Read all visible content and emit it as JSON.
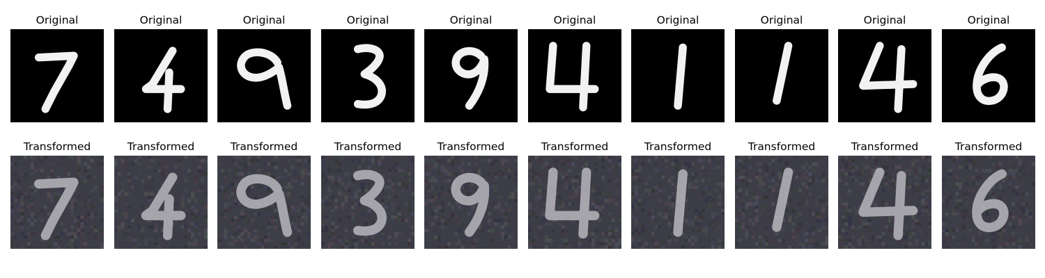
{
  "rows": [
    {
      "kind": "original",
      "panels": [
        {
          "title": "Original",
          "digit": "7"
        },
        {
          "title": "Original",
          "digit": "4"
        },
        {
          "title": "Original",
          "digit": "9"
        },
        {
          "title": "Original",
          "digit": "3"
        },
        {
          "title": "Original",
          "digit": "9"
        },
        {
          "title": "Original",
          "digit": "4"
        },
        {
          "title": "Original",
          "digit": "1"
        },
        {
          "title": "Original",
          "digit": "1"
        },
        {
          "title": "Original",
          "digit": "4"
        },
        {
          "title": "Original",
          "digit": "6"
        }
      ]
    },
    {
      "kind": "transformed",
      "panels": [
        {
          "title": "Transformed",
          "digit": "7"
        },
        {
          "title": "Transformed",
          "digit": "4"
        },
        {
          "title": "Transformed",
          "digit": "9"
        },
        {
          "title": "Transformed",
          "digit": "3"
        },
        {
          "title": "Transformed",
          "digit": "9"
        },
        {
          "title": "Transformed",
          "digit": "4"
        },
        {
          "title": "Transformed",
          "digit": "1"
        },
        {
          "title": "Transformed",
          "digit": "1"
        },
        {
          "title": "Transformed",
          "digit": "4"
        },
        {
          "title": "Transformed",
          "digit": "6"
        }
      ]
    }
  ],
  "colors": {
    "original_bg": "#000000",
    "original_stroke": "#f2f2f2",
    "transformed_bg": "#3d3d48",
    "transformed_stroke": "#b8b6bd"
  }
}
